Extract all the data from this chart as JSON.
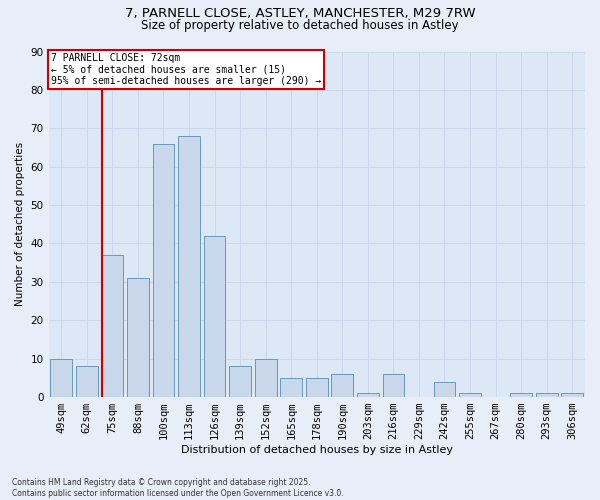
{
  "title_line1": "7, PARNELL CLOSE, ASTLEY, MANCHESTER, M29 7RW",
  "title_line2": "Size of property relative to detached houses in Astley",
  "xlabel": "Distribution of detached houses by size in Astley",
  "ylabel": "Number of detached properties",
  "categories": [
    "49sqm",
    "62sqm",
    "75sqm",
    "88sqm",
    "100sqm",
    "113sqm",
    "126sqm",
    "139sqm",
    "152sqm",
    "165sqm",
    "178sqm",
    "190sqm",
    "203sqm",
    "216sqm",
    "229sqm",
    "242sqm",
    "255sqm",
    "267sqm",
    "280sqm",
    "293sqm",
    "306sqm"
  ],
  "values": [
    10,
    8,
    37,
    31,
    66,
    68,
    42,
    8,
    10,
    5,
    5,
    6,
    1,
    6,
    0,
    4,
    1,
    0,
    1,
    1,
    1
  ],
  "bar_color": "#c8d8ea",
  "bar_edge_color": "#6699bb",
  "highlight_color": "#cc0000",
  "annotation_text": "7 PARNELL CLOSE: 72sqm\n← 5% of detached houses are smaller (15)\n95% of semi-detached houses are larger (290) →",
  "annotation_box_color": "#ffffff",
  "annotation_box_edge_color": "#cc0000",
  "ylim": [
    0,
    90
  ],
  "yticks": [
    0,
    10,
    20,
    30,
    40,
    50,
    60,
    70,
    80,
    90
  ],
  "background_color": "#e8eef8",
  "plot_background_color": "#dce8f5",
  "grid_color": "#c8d4e8",
  "footnote": "Contains HM Land Registry data © Crown copyright and database right 2025.\nContains public sector information licensed under the Open Government Licence v3.0.",
  "title_fontsize": 9.5,
  "subtitle_fontsize": 8.5,
  "bar_width": 0.85,
  "figsize": [
    6.0,
    5.0
  ],
  "dpi": 100
}
